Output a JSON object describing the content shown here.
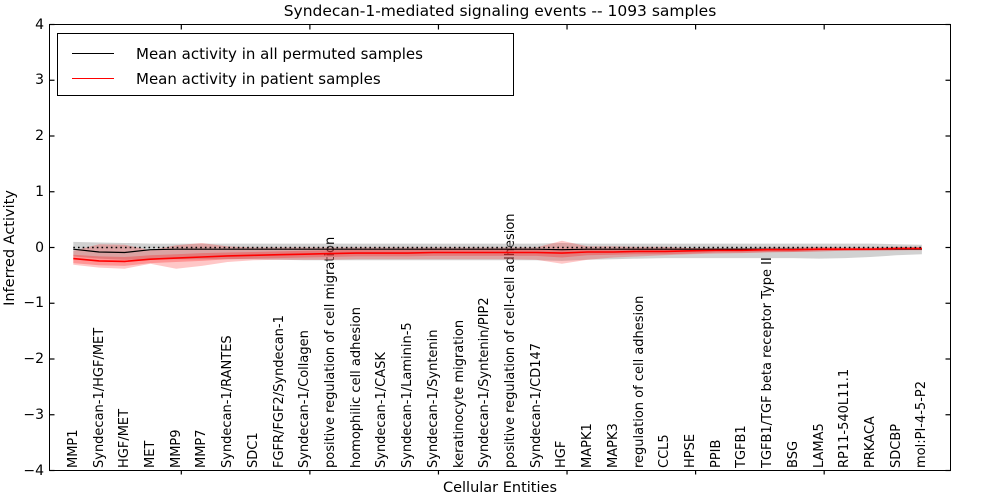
{
  "title": "Syndecan-1-mediated signaling events -- 1093 samples",
  "axes": {
    "x_label": "Cellular Entities",
    "y_label": "Inferred Activity",
    "y_tick_labels": [
      "4",
      "3",
      "2",
      "1",
      "0",
      "−1",
      "−2",
      "−3",
      "−4"
    ],
    "y_tick_values": [
      4,
      3,
      2,
      1,
      0,
      -1,
      -2,
      -3,
      -4
    ]
  },
  "legend": {
    "items": [
      {
        "label": "Mean activity in all permuted samples",
        "color": "#000000"
      },
      {
        "label": "Mean activity in patient samples",
        "color": "#ff0000"
      }
    ]
  },
  "chart_data": {
    "type": "line",
    "title": "Syndecan-1-mediated signaling events -- 1093 samples",
    "xlabel": "Cellular Entities",
    "ylabel": "Inferred Activity",
    "ylim": [
      -4,
      4
    ],
    "grid": false,
    "legend_position": "upper left",
    "baseline": {
      "y": 0,
      "style": "dotted",
      "color": "#000000"
    },
    "categories": [
      "MMP1",
      "Syndecan-1/HGF/MET",
      "HGF/MET",
      "MET",
      "MMP9",
      "MMP7",
      "Syndecan-1/RANTES",
      "SDC1",
      "FGFR/FGF2/Syndecan-1",
      "Syndecan-1/Collagen",
      "positive regulation of cell migration",
      "homophilic cell adhesion",
      "Syndecan-1/CASK",
      "Syndecan-1/Laminin-5",
      "Syndecan-1/Syntenin",
      "keratinocyte migration",
      "Syndecan-1/Syntenin/PIP2",
      "positive regulation of cell-cell adhesion",
      "Syndecan-1/CD147",
      "HGF",
      "MAPK1",
      "MAPK3",
      "regulation of cell adhesion",
      "CCL5",
      "HPSE",
      "PPIB",
      "TGFB1",
      "TGFB1/TGF beta receptor Type II",
      "BSG",
      "LAMA5",
      "RP11-540L11.1",
      "PRKACA",
      "SDCBP",
      "mol:PI-4-5-P2"
    ],
    "series": [
      {
        "name": "Mean activity in all permuted samples",
        "color": "#000000",
        "style": "solid",
        "values": [
          -0.03,
          -0.08,
          -0.09,
          -0.04,
          -0.03,
          -0.03,
          -0.03,
          -0.03,
          -0.03,
          -0.03,
          -0.03,
          -0.03,
          -0.03,
          -0.03,
          -0.03,
          -0.03,
          -0.03,
          -0.03,
          -0.03,
          -0.04,
          -0.03,
          -0.03,
          -0.03,
          -0.03,
          -0.03,
          -0.03,
          -0.03,
          -0.03,
          -0.03,
          -0.03,
          -0.03,
          -0.03,
          -0.03,
          -0.03
        ]
      },
      {
        "name": "Mean activity in patient samples",
        "color": "#ff0000",
        "style": "solid",
        "values": [
          -0.2,
          -0.24,
          -0.25,
          -0.21,
          -0.19,
          -0.17,
          -0.15,
          -0.14,
          -0.13,
          -0.12,
          -0.11,
          -0.1,
          -0.1,
          -0.1,
          -0.09,
          -0.09,
          -0.09,
          -0.09,
          -0.09,
          -0.1,
          -0.08,
          -0.08,
          -0.07,
          -0.07,
          -0.06,
          -0.05,
          -0.05,
          -0.04,
          -0.04,
          -0.03,
          -0.03,
          -0.03,
          -0.02,
          -0.02
        ]
      }
    ],
    "bands": [
      {
        "name": "permuted-samples-range",
        "color": "#999999",
        "opacity": 0.45,
        "top": [
          0.1,
          0.09,
          0.08,
          0.07,
          0.07,
          0.07,
          0.07,
          0.07,
          0.07,
          0.07,
          0.07,
          0.07,
          0.07,
          0.07,
          0.07,
          0.07,
          0.07,
          0.07,
          0.07,
          0.08,
          0.07,
          0.07,
          0.07,
          0.07,
          0.07,
          0.07,
          0.07,
          0.07,
          0.07,
          0.07,
          0.07,
          0.07,
          0.06,
          0.05
        ],
        "bottom": [
          -0.16,
          -0.2,
          -0.22,
          -0.21,
          -0.21,
          -0.21,
          -0.21,
          -0.21,
          -0.22,
          -0.23,
          -0.23,
          -0.23,
          -0.23,
          -0.23,
          -0.23,
          -0.23,
          -0.23,
          -0.23,
          -0.23,
          -0.24,
          -0.22,
          -0.21,
          -0.2,
          -0.19,
          -0.19,
          -0.19,
          -0.19,
          -0.19,
          -0.19,
          -0.2,
          -0.19,
          -0.17,
          -0.14,
          -0.12
        ]
      },
      {
        "name": "patient-samples-outer",
        "color": "#ff0000",
        "opacity": 0.22,
        "top": [
          -0.06,
          0.06,
          0.05,
          -0.05,
          0.04,
          0.08,
          0.02,
          0.0,
          0.0,
          0.0,
          0.0,
          0.0,
          0.0,
          0.0,
          0.0,
          0.0,
          0.0,
          0.0,
          0.0,
          0.12,
          0.02,
          0.02,
          0.01,
          0.01,
          -0.01,
          -0.02,
          -0.02,
          -0.02,
          -0.02,
          -0.01,
          -0.01,
          -0.01,
          0.0,
          0.0
        ],
        "bottom": [
          -0.31,
          -0.36,
          -0.38,
          -0.29,
          -0.38,
          -0.33,
          -0.26,
          -0.23,
          -0.22,
          -0.22,
          -0.22,
          -0.21,
          -0.21,
          -0.21,
          -0.21,
          -0.21,
          -0.21,
          -0.21,
          -0.22,
          -0.29,
          -0.22,
          -0.18,
          -0.16,
          -0.14,
          -0.12,
          -0.11,
          -0.1,
          -0.09,
          -0.08,
          -0.07,
          -0.06,
          -0.05,
          -0.05,
          -0.04
        ]
      },
      {
        "name": "patient-samples-inner",
        "color": "#ff0000",
        "opacity": 0.25,
        "top": [
          -0.13,
          -0.16,
          -0.17,
          -0.14,
          -0.12,
          -0.1,
          -0.09,
          -0.08,
          -0.07,
          -0.06,
          -0.05,
          -0.04,
          -0.04,
          -0.04,
          -0.03,
          -0.03,
          -0.03,
          -0.03,
          -0.03,
          -0.02,
          -0.02,
          -0.03,
          -0.02,
          -0.02,
          -0.01,
          -0.01,
          -0.01,
          0.0,
          0.0,
          0.01,
          0.0,
          0.0,
          0.01,
          0.01
        ],
        "bottom": [
          -0.28,
          -0.32,
          -0.33,
          -0.28,
          -0.26,
          -0.24,
          -0.21,
          -0.2,
          -0.19,
          -0.18,
          -0.17,
          -0.16,
          -0.16,
          -0.16,
          -0.15,
          -0.15,
          -0.15,
          -0.15,
          -0.15,
          -0.18,
          -0.14,
          -0.13,
          -0.12,
          -0.12,
          -0.11,
          -0.09,
          -0.09,
          -0.08,
          -0.08,
          -0.07,
          -0.06,
          -0.06,
          -0.05,
          -0.05
        ]
      }
    ]
  }
}
